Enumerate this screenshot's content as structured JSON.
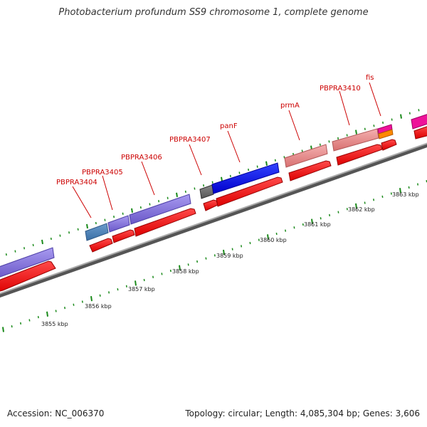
{
  "title": "Photobacterium profundum SS9 chromosome 1, complete genome",
  "footer": {
    "accession": "Accession: NC_006370",
    "summary": "Topology: circular; Length: 4,085,304 bp; Genes: 3,606"
  },
  "colors": {
    "label_red": "#cc0000",
    "cds_red": "#ff1010",
    "purple": "#7b68d8",
    "steel_blue": "#4a7fb5",
    "blue": "#0000ee",
    "gray": "#666666",
    "pink": "#e8888a",
    "magenta": "#ee1199",
    "orange": "#ff8800",
    "tick_green": "#1a8a1a",
    "backbone_gray": "#888888"
  },
  "gene_labels": [
    "PBPRA3404",
    "PBPRA3405",
    "PBPRA3406",
    "PBPRA3407",
    "panF",
    "prmA",
    "PBPRA3410",
    "fis"
  ],
  "kbp_labels": [
    "3855 kbp",
    "3856 kbp",
    "3857 kbp",
    "3858 kbp",
    "3859 kbp",
    "3860 kbp",
    "3861 kbp",
    "3862 kbp",
    "3863 kbp"
  ]
}
